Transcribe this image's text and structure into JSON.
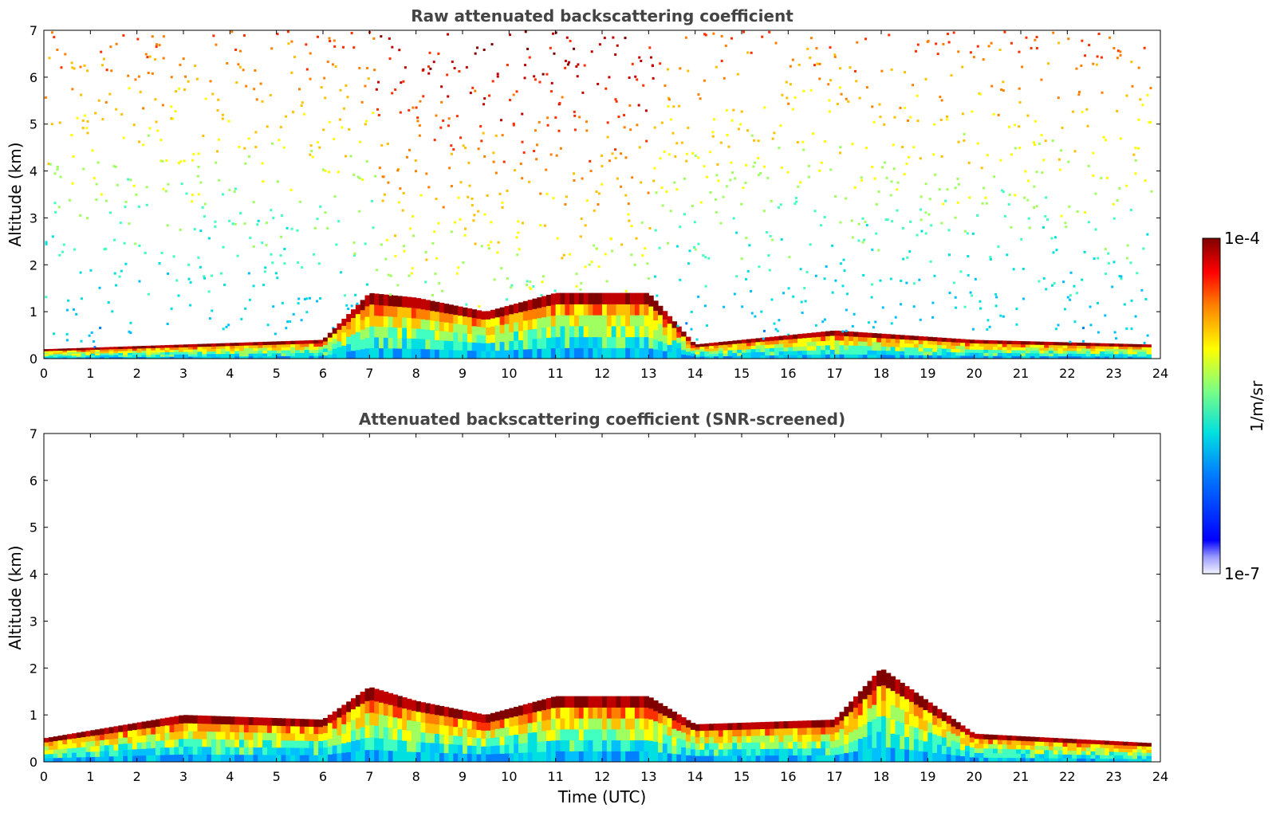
{
  "chart_data": [
    {
      "type": "heatmap",
      "title": "Raw attenuated backscattering coefficient",
      "xlabel": "",
      "ylabel": "Altitude (km)",
      "xlim": [
        0,
        24
      ],
      "ylim": [
        0,
        7
      ],
      "xticks": [
        "0",
        "1",
        "2",
        "3",
        "4",
        "5",
        "6",
        "7",
        "8",
        "9",
        "10",
        "11",
        "12",
        "13",
        "14",
        "15",
        "16",
        "17",
        "18",
        "19",
        "20",
        "21",
        "22",
        "23",
        "24"
      ],
      "yticks": [
        "0",
        "1",
        "2",
        "3",
        "4",
        "5",
        "6",
        "7"
      ],
      "features": {
        "boundary_layer_top_km": [
          [
            0,
            0.2
          ],
          [
            3,
            0.3
          ],
          [
            6,
            0.4
          ],
          [
            7,
            1.4
          ],
          [
            8,
            1.3
          ],
          [
            9.5,
            1.0
          ],
          [
            11,
            1.4
          ],
          [
            13,
            1.4
          ],
          [
            14,
            0.3
          ],
          [
            17,
            0.6
          ],
          [
            20,
            0.4
          ],
          [
            23.8,
            0.3
          ]
        ],
        "noise_increase_with_altitude": true,
        "daytime_noise_peak_utc": [
          7,
          13
        ]
      }
    },
    {
      "type": "heatmap",
      "title": "Attenuated backscattering coefficient (SNR-screened)",
      "xlabel": "Time (UTC)",
      "ylabel": "Altitude (km)",
      "xlim": [
        0,
        24
      ],
      "ylim": [
        0,
        7
      ],
      "xticks": [
        "0",
        "1",
        "2",
        "3",
        "4",
        "5",
        "6",
        "7",
        "8",
        "9",
        "10",
        "11",
        "12",
        "13",
        "14",
        "15",
        "16",
        "17",
        "18",
        "19",
        "20",
        "21",
        "22",
        "23",
        "24"
      ],
      "yticks": [
        "0",
        "1",
        "2",
        "3",
        "4",
        "5",
        "6",
        "7"
      ],
      "features": {
        "screened_top_km": [
          [
            0,
            0.5
          ],
          [
            3,
            1.0
          ],
          [
            6,
            0.9
          ],
          [
            7,
            1.6
          ],
          [
            8,
            1.3
          ],
          [
            9.5,
            1.0
          ],
          [
            11,
            1.4
          ],
          [
            13,
            1.4
          ],
          [
            14,
            0.8
          ],
          [
            17,
            0.9
          ],
          [
            18,
            2.0
          ],
          [
            20,
            0.6
          ],
          [
            23.8,
            0.4
          ]
        ]
      }
    }
  ],
  "colorbar": {
    "min_label": "1e-7",
    "max_label": "1e-4",
    "units_label": "1/m/sr",
    "scale": "log",
    "colormap": "jet",
    "low_color": "#eef0ff",
    "high_color": "#800000"
  }
}
